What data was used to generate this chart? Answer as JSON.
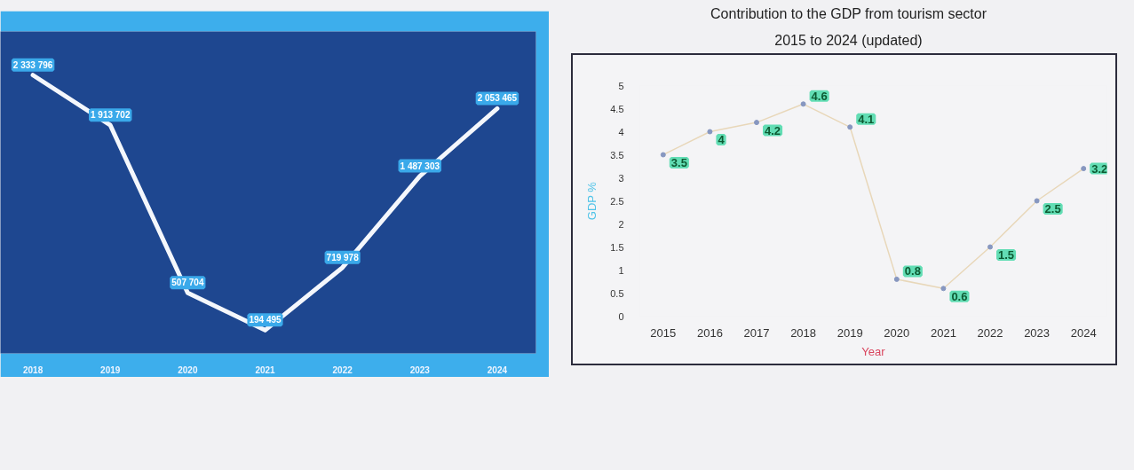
{
  "chart_data": [
    {
      "type": "line",
      "categories": [
        "2018",
        "2019",
        "2020",
        "2021",
        "2022",
        "2023",
        "2024"
      ],
      "series": [
        {
          "color": "#f4f7fc",
          "values": [
            2333796,
            1913702,
            507704,
            194495,
            719978,
            1487303,
            2053465
          ],
          "value_labels": [
            "2 333 796",
            "1 913 702",
            "507 704",
            "194 495",
            "719 978",
            "1 487 303",
            "2 053 465"
          ]
        }
      ],
      "ylim": [
        0,
        2700000
      ],
      "tick_labels": "x",
      "marker": "none",
      "line_style": "solid",
      "grid": false
    },
    {
      "type": "line",
      "title": "Contribution to the GDP from tourism sector",
      "subtitle": "2015 to 2024 (updated)",
      "xlabel": "Year",
      "ylabel": "GDP %",
      "categories": [
        "2015",
        "2016",
        "2017",
        "2018",
        "2019",
        "2020",
        "2021",
        "2022",
        "2023",
        "2024"
      ],
      "series": [
        {
          "color": "#e8d7b9",
          "values": [
            3.5,
            4,
            4.2,
            4.6,
            4.1,
            0.8,
            0.6,
            1.5,
            2.5,
            3.2
          ]
        }
      ],
      "ylim": [
        0,
        5
      ],
      "yticks": [
        0,
        0.5,
        1,
        1.5,
        2,
        2.5,
        3,
        3.5,
        4,
        4.5,
        5
      ],
      "data_labels": true,
      "marker": "circle",
      "line_style": "solid",
      "grid": false
    }
  ]
}
